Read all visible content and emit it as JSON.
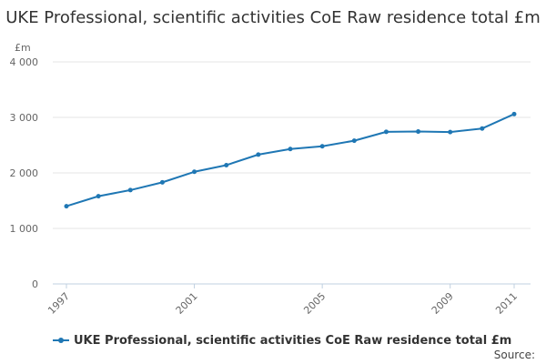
{
  "colors": {
    "series": "#1f77b4",
    "grid": "#e6e6e6",
    "axis": "#c0d0e0",
    "text": "#333333",
    "muted": "#666666"
  },
  "chart_data": {
    "type": "line",
    "title": "UKE Professional, scientific activities CoE Raw residence total £m",
    "ylabel": "£m",
    "xlabel": "",
    "ylim": [
      0,
      4000
    ],
    "yticks": [
      0,
      1000,
      2000,
      3000,
      4000
    ],
    "ytick_labels": [
      "0",
      "1 000",
      "2 000",
      "3 000",
      "4 000"
    ],
    "xlim": [
      1997,
      2011
    ],
    "xticks": [
      1997,
      2001,
      2005,
      2009,
      2011
    ],
    "xtick_labels": [
      "1997",
      "2001",
      "2005",
      "2009",
      "2011"
    ],
    "grid": true,
    "legend_position": "bottom-left",
    "series": [
      {
        "name": "UKE Professional, scientific activities CoE Raw residence total £m",
        "x": [
          1997,
          1998,
          1999,
          2000,
          2001,
          2002,
          2003,
          2004,
          2005,
          2006,
          2007,
          2008,
          2009,
          2010,
          2011
        ],
        "values": [
          1400,
          1580,
          1690,
          1830,
          2020,
          2140,
          2330,
          2430,
          2480,
          2580,
          2740,
          2745,
          2735,
          2800,
          3060
        ]
      }
    ]
  },
  "footer": {
    "source_label": "Source:"
  }
}
